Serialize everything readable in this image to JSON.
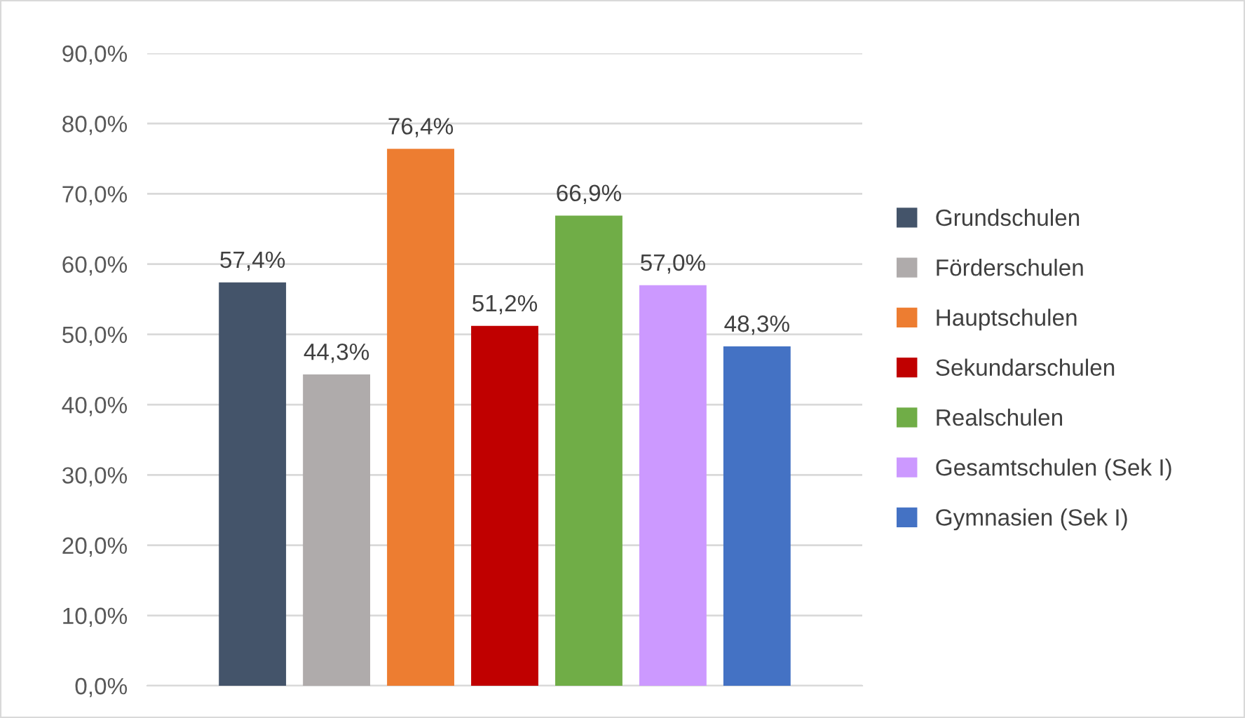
{
  "chart_data": {
    "type": "bar",
    "categories": [
      null
    ],
    "series": [
      {
        "name": "Grundschulen",
        "color": "#44546a",
        "values": [
          57.4
        ],
        "value_labels": [
          "57,4%"
        ]
      },
      {
        "name": "Förderschulen",
        "color": "#afabab",
        "values": [
          44.3
        ],
        "value_labels": [
          "44,3%"
        ]
      },
      {
        "name": "Hauptschulen",
        "color": "#ed7d31",
        "values": [
          76.4
        ],
        "value_labels": [
          "76,4%"
        ]
      },
      {
        "name": "Sekundarschulen",
        "color": "#c00000",
        "values": [
          51.2
        ],
        "value_labels": [
          "51,2%"
        ]
      },
      {
        "name": "Realschulen",
        "color": "#70ad47",
        "values": [
          66.9
        ],
        "value_labels": [
          "66,9%"
        ]
      },
      {
        "name": "Gesamtschulen (Sek I)",
        "color": "#cc99ff",
        "values": [
          57.0
        ],
        "value_labels": [
          "57,0%"
        ]
      },
      {
        "name": "Gymnasien (Sek I)",
        "color": "#4472c4",
        "values": [
          48.3
        ],
        "value_labels": [
          "48,3%"
        ]
      }
    ],
    "ylim": [
      0,
      90
    ],
    "yticks": [
      {
        "value": 0,
        "label": "0,0%"
      },
      {
        "value": 10,
        "label": "10,0%"
      },
      {
        "value": 20,
        "label": "20,0%"
      },
      {
        "value": 30,
        "label": "30,0%"
      },
      {
        "value": 40,
        "label": "40,0%"
      },
      {
        "value": 50,
        "label": "50,0%"
      },
      {
        "value": 60,
        "label": "60,0%"
      },
      {
        "value": 70,
        "label": "70,0%"
      },
      {
        "value": 80,
        "label": "80,0%"
      },
      {
        "value": 90,
        "label": "90,0%"
      }
    ],
    "grid": "y",
    "legend": "right"
  }
}
